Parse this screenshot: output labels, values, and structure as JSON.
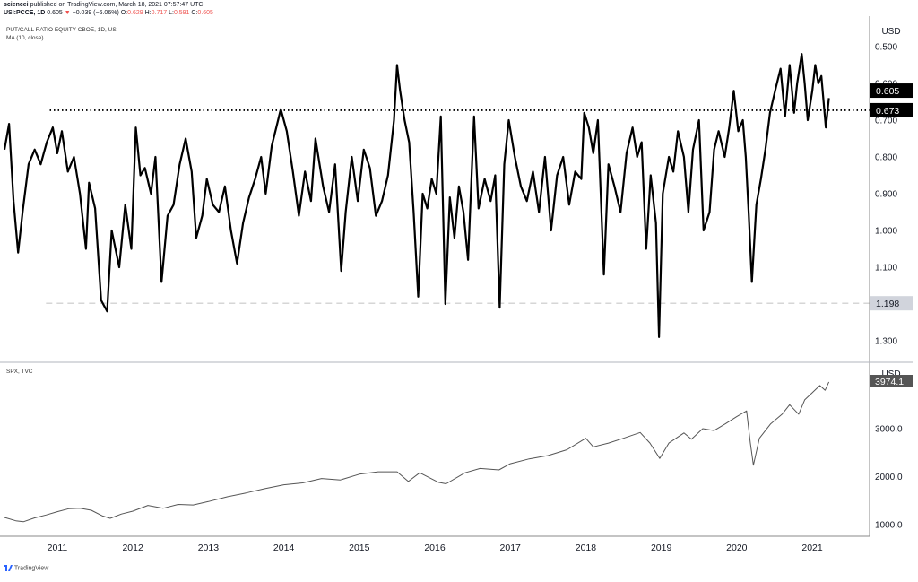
{
  "header": {
    "publisher": "sciencei",
    "published_text": "published on TradingView.com, March 18, 2021 07:57:47 UTC",
    "symbol": "USI:PCCE, 1D",
    "last": "0.605",
    "change_icon": "triangle-down-icon",
    "change_glyph": "▼",
    "change": "−0.039 (−6.06%)",
    "o_label": "O:",
    "o_value": "0.629",
    "h_label": "H:",
    "h_value": "0.717",
    "l_label": "L:",
    "l_value": "0.591",
    "c_label": "C:",
    "c_value": "0.605"
  },
  "footer": {
    "logo_icon": "tradingview-logo-icon",
    "text": "TradingView"
  },
  "colors": {
    "series": "#000000",
    "spx_line": "#555555",
    "grid_sep": "#b2b5be",
    "axis_line": "#888888",
    "hline_1198": "#c8c8c8",
    "label_dark_bg": "#000000",
    "label_light_bg": "#d1d4dc",
    "spx_label_bg": "#555555",
    "falling": "#ef5350"
  },
  "chart_data": [
    {
      "type": "line",
      "title": "PUT/CALL RATIO EQUITY CBOE, 1D, USI",
      "subtitle": "MA (10, close)",
      "currency": "USD",
      "y_inverted": true,
      "ylim": [
        0.42,
        1.33
      ],
      "y_ticks": [
        0.5,
        0.6,
        0.7,
        0.8,
        0.9,
        1.0,
        1.1,
        1.2,
        1.3
      ],
      "y_tick_labels": [
        "0.500",
        "0.600",
        "0.700",
        "0.800",
        "0.900",
        "1.000",
        "1.100",
        "1.200",
        "1.300"
      ],
      "xlim": [
        2010.3,
        2021.7
      ],
      "x_ticks": [
        2011,
        2012,
        2013,
        2014,
        2015,
        2016,
        2017,
        2018,
        2019,
        2020,
        2021
      ],
      "x_tick_labels": [
        "2011",
        "2012",
        "2013",
        "2014",
        "2015",
        "2016",
        "2017",
        "2018",
        "2019",
        "2020",
        "2021"
      ],
      "grid": false,
      "reference_lines": [
        {
          "value": 0.673,
          "label": "0.673",
          "style": "dotted",
          "start_x": 2010.9
        },
        {
          "value": 1.198,
          "label": "1.198",
          "style": "dashed",
          "start_x": 2010.85
        }
      ],
      "last_value_label": "0.605",
      "series": [
        {
          "values": [
            [
              2010.3,
              0.78
            ],
            [
              2010.36,
              0.71
            ],
            [
              2010.42,
              0.92
            ],
            [
              2010.48,
              1.06
            ],
            [
              2010.54,
              0.95
            ],
            [
              2010.62,
              0.82
            ],
            [
              2010.7,
              0.78
            ],
            [
              2010.78,
              0.82
            ],
            [
              2010.86,
              0.76
            ],
            [
              2010.94,
              0.72
            ],
            [
              2011.0,
              0.79
            ],
            [
              2011.06,
              0.73
            ],
            [
              2011.14,
              0.84
            ],
            [
              2011.22,
              0.8
            ],
            [
              2011.3,
              0.9
            ],
            [
              2011.38,
              1.05
            ],
            [
              2011.42,
              0.87
            ],
            [
              2011.5,
              0.94
            ],
            [
              2011.58,
              1.19
            ],
            [
              2011.66,
              1.22
            ],
            [
              2011.72,
              1.0
            ],
            [
              2011.82,
              1.1
            ],
            [
              2011.9,
              0.93
            ],
            [
              2011.98,
              1.05
            ],
            [
              2012.04,
              0.72
            ],
            [
              2012.1,
              0.85
            ],
            [
              2012.16,
              0.83
            ],
            [
              2012.24,
              0.9
            ],
            [
              2012.3,
              0.8
            ],
            [
              2012.38,
              1.14
            ],
            [
              2012.46,
              0.96
            ],
            [
              2012.54,
              0.93
            ],
            [
              2012.62,
              0.82
            ],
            [
              2012.7,
              0.75
            ],
            [
              2012.78,
              0.84
            ],
            [
              2012.84,
              1.02
            ],
            [
              2012.92,
              0.96
            ],
            [
              2012.98,
              0.86
            ],
            [
              2013.06,
              0.93
            ],
            [
              2013.14,
              0.95
            ],
            [
              2013.22,
              0.88
            ],
            [
              2013.3,
              1.0
            ],
            [
              2013.38,
              1.09
            ],
            [
              2013.46,
              0.98
            ],
            [
              2013.54,
              0.91
            ],
            [
              2013.62,
              0.86
            ],
            [
              2013.7,
              0.8
            ],
            [
              2013.76,
              0.9
            ],
            [
              2013.84,
              0.77
            ],
            [
              2013.9,
              0.72
            ],
            [
              2013.96,
              0.67
            ],
            [
              2014.04,
              0.73
            ],
            [
              2014.12,
              0.84
            ],
            [
              2014.2,
              0.96
            ],
            [
              2014.28,
              0.84
            ],
            [
              2014.36,
              0.92
            ],
            [
              2014.42,
              0.75
            ],
            [
              2014.52,
              0.88
            ],
            [
              2014.6,
              0.95
            ],
            [
              2014.68,
              0.82
            ],
            [
              2014.76,
              1.11
            ],
            [
              2014.82,
              0.95
            ],
            [
              2014.9,
              0.8
            ],
            [
              2014.98,
              0.92
            ],
            [
              2015.06,
              0.78
            ],
            [
              2015.14,
              0.83
            ],
            [
              2015.22,
              0.96
            ],
            [
              2015.3,
              0.92
            ],
            [
              2015.38,
              0.85
            ],
            [
              2015.46,
              0.7
            ],
            [
              2015.5,
              0.55
            ],
            [
              2015.54,
              0.62
            ],
            [
              2015.6,
              0.7
            ],
            [
              2015.66,
              0.76
            ],
            [
              2015.72,
              0.95
            ],
            [
              2015.78,
              1.18
            ],
            [
              2015.84,
              0.9
            ],
            [
              2015.9,
              0.94
            ],
            [
              2015.96,
              0.86
            ],
            [
              2016.02,
              0.9
            ],
            [
              2016.08,
              0.69
            ],
            [
              2016.14,
              1.2
            ],
            [
              2016.2,
              0.91
            ],
            [
              2016.26,
              1.02
            ],
            [
              2016.32,
              0.88
            ],
            [
              2016.38,
              0.95
            ],
            [
              2016.44,
              1.08
            ],
            [
              2016.52,
              0.69
            ],
            [
              2016.58,
              0.94
            ],
            [
              2016.66,
              0.86
            ],
            [
              2016.74,
              0.92
            ],
            [
              2016.8,
              0.85
            ],
            [
              2016.86,
              1.21
            ],
            [
              2016.92,
              0.82
            ],
            [
              2016.98,
              0.7
            ],
            [
              2017.06,
              0.8
            ],
            [
              2017.14,
              0.88
            ],
            [
              2017.22,
              0.92
            ],
            [
              2017.3,
              0.84
            ],
            [
              2017.38,
              0.95
            ],
            [
              2017.46,
              0.8
            ],
            [
              2017.54,
              1.0
            ],
            [
              2017.62,
              0.85
            ],
            [
              2017.7,
              0.8
            ],
            [
              2017.78,
              0.93
            ],
            [
              2017.86,
              0.84
            ],
            [
              2017.94,
              0.86
            ],
            [
              2017.98,
              0.68
            ],
            [
              2018.04,
              0.72
            ],
            [
              2018.1,
              0.79
            ],
            [
              2018.16,
              0.7
            ],
            [
              2018.24,
              1.12
            ],
            [
              2018.3,
              0.82
            ],
            [
              2018.38,
              0.88
            ],
            [
              2018.46,
              0.95
            ],
            [
              2018.54,
              0.79
            ],
            [
              2018.62,
              0.72
            ],
            [
              2018.68,
              0.8
            ],
            [
              2018.74,
              0.76
            ],
            [
              2018.8,
              1.05
            ],
            [
              2018.86,
              0.85
            ],
            [
              2018.93,
              0.98
            ],
            [
              2018.97,
              1.29
            ],
            [
              2019.02,
              0.9
            ],
            [
              2019.1,
              0.8
            ],
            [
              2019.16,
              0.84
            ],
            [
              2019.22,
              0.73
            ],
            [
              2019.3,
              0.8
            ],
            [
              2019.36,
              0.95
            ],
            [
              2019.42,
              0.78
            ],
            [
              2019.5,
              0.7
            ],
            [
              2019.56,
              1.0
            ],
            [
              2019.64,
              0.95
            ],
            [
              2019.7,
              0.78
            ],
            [
              2019.76,
              0.73
            ],
            [
              2019.84,
              0.8
            ],
            [
              2019.9,
              0.72
            ],
            [
              2019.96,
              0.62
            ],
            [
              2020.02,
              0.73
            ],
            [
              2020.08,
              0.7
            ],
            [
              2020.12,
              0.8
            ],
            [
              2020.16,
              0.96
            ],
            [
              2020.2,
              1.14
            ],
            [
              2020.26,
              0.93
            ],
            [
              2020.32,
              0.86
            ],
            [
              2020.38,
              0.78
            ],
            [
              2020.44,
              0.68
            ],
            [
              2020.52,
              0.61
            ],
            [
              2020.58,
              0.56
            ],
            [
              2020.64,
              0.69
            ],
            [
              2020.7,
              0.55
            ],
            [
              2020.76,
              0.68
            ],
            [
              2020.8,
              0.6
            ],
            [
              2020.86,
              0.52
            ],
            [
              2020.9,
              0.6
            ],
            [
              2020.94,
              0.7
            ],
            [
              2021.0,
              0.62
            ],
            [
              2021.04,
              0.55
            ],
            [
              2021.08,
              0.6
            ],
            [
              2021.12,
              0.58
            ],
            [
              2021.18,
              0.72
            ],
            [
              2021.22,
              0.64
            ]
          ]
        }
      ]
    },
    {
      "type": "line",
      "title": "SPX, TVC",
      "currency": "USD",
      "ylim": [
        870,
        4150
      ],
      "y_ticks": [
        1000,
        2000,
        3000
      ],
      "y_tick_labels": [
        "1000.0",
        "2000.0",
        "3000.0"
      ],
      "xlim": [
        2010.3,
        2021.7
      ],
      "grid": false,
      "last_value_label": "3974.1",
      "series": [
        {
          "values": [
            [
              2010.3,
              1150
            ],
            [
              2010.45,
              1080
            ],
            [
              2010.55,
              1060
            ],
            [
              2010.7,
              1140
            ],
            [
              2010.85,
              1200
            ],
            [
              2011.0,
              1270
            ],
            [
              2011.15,
              1330
            ],
            [
              2011.3,
              1340
            ],
            [
              2011.45,
              1300
            ],
            [
              2011.6,
              1180
            ],
            [
              2011.7,
              1130
            ],
            [
              2011.85,
              1220
            ],
            [
              2012.0,
              1280
            ],
            [
              2012.2,
              1400
            ],
            [
              2012.4,
              1340
            ],
            [
              2012.6,
              1420
            ],
            [
              2012.8,
              1410
            ],
            [
              2013.0,
              1480
            ],
            [
              2013.25,
              1580
            ],
            [
              2013.5,
              1660
            ],
            [
              2013.75,
              1750
            ],
            [
              2014.0,
              1830
            ],
            [
              2014.25,
              1870
            ],
            [
              2014.5,
              1960
            ],
            [
              2014.75,
              1930
            ],
            [
              2015.0,
              2050
            ],
            [
              2015.25,
              2100
            ],
            [
              2015.5,
              2100
            ],
            [
              2015.65,
              1900
            ],
            [
              2015.8,
              2080
            ],
            [
              2016.05,
              1880
            ],
            [
              2016.15,
              1850
            ],
            [
              2016.4,
              2080
            ],
            [
              2016.6,
              2170
            ],
            [
              2016.85,
              2140
            ],
            [
              2017.0,
              2270
            ],
            [
              2017.25,
              2370
            ],
            [
              2017.5,
              2440
            ],
            [
              2017.75,
              2560
            ],
            [
              2018.0,
              2800
            ],
            [
              2018.1,
              2620
            ],
            [
              2018.3,
              2700
            ],
            [
              2018.5,
              2800
            ],
            [
              2018.72,
              2920
            ],
            [
              2018.85,
              2700
            ],
            [
              2018.98,
              2380
            ],
            [
              2019.1,
              2700
            ],
            [
              2019.3,
              2910
            ],
            [
              2019.4,
              2780
            ],
            [
              2019.55,
              3000
            ],
            [
              2019.7,
              2960
            ],
            [
              2019.85,
              3100
            ],
            [
              2020.0,
              3250
            ],
            [
              2020.13,
              3370
            ],
            [
              2020.18,
              2700
            ],
            [
              2020.22,
              2240
            ],
            [
              2020.3,
              2800
            ],
            [
              2020.45,
              3100
            ],
            [
              2020.6,
              3300
            ],
            [
              2020.7,
              3500
            ],
            [
              2020.82,
              3300
            ],
            [
              2020.9,
              3600
            ],
            [
              2021.0,
              3750
            ],
            [
              2021.1,
              3900
            ],
            [
              2021.17,
              3800
            ],
            [
              2021.22,
              3974
            ]
          ]
        }
      ]
    }
  ]
}
